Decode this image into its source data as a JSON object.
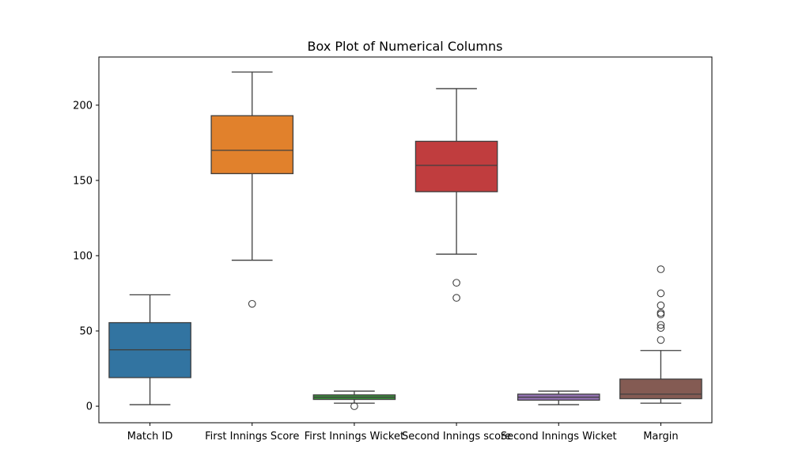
{
  "chart_data": {
    "type": "box",
    "title": "Box Plot of Numerical Columns",
    "xlabel": "",
    "ylabel": "",
    "ylim": [
      -11,
      232
    ],
    "yticks": [
      0,
      50,
      100,
      150,
      200
    ],
    "grid": false,
    "categories": [
      "Match ID",
      "First Innings Score",
      "First Innings Wicket",
      "Second Innings score",
      "Second Innings Wicket",
      "Margin"
    ],
    "boxes": [
      {
        "category": "Match ID",
        "color": "#3274a1",
        "whisker_low": 1,
        "q1": 19,
        "median": 37.5,
        "q3": 55.5,
        "whisker_high": 74,
        "outliers": []
      },
      {
        "category": "First Innings Score",
        "color": "#e1812c",
        "whisker_low": 97,
        "q1": 154.5,
        "median": 170,
        "q3": 193,
        "whisker_high": 222,
        "outliers": [
          68
        ]
      },
      {
        "category": "First Innings Wicket",
        "color": "#3a923a",
        "whisker_low": 2,
        "q1": 4.5,
        "median": 6,
        "q3": 7.5,
        "whisker_high": 10,
        "outliers": [
          0
        ]
      },
      {
        "category": "Second Innings score",
        "color": "#c03d3e",
        "whisker_low": 101,
        "q1": 142.5,
        "median": 160,
        "q3": 176,
        "whisker_high": 211,
        "outliers": [
          82,
          72
        ]
      },
      {
        "category": "Second Innings Wicket",
        "color": "#9372b2",
        "whisker_low": 1,
        "q1": 4,
        "median": 6,
        "q3": 8,
        "whisker_high": 10,
        "outliers": []
      },
      {
        "category": "Margin",
        "color": "#845b53",
        "whisker_low": 2,
        "q1": 5,
        "median": 8,
        "q3": 18,
        "whisker_high": 37,
        "outliers": [
          44,
          52,
          54,
          61,
          62,
          67,
          75,
          91
        ]
      }
    ]
  }
}
